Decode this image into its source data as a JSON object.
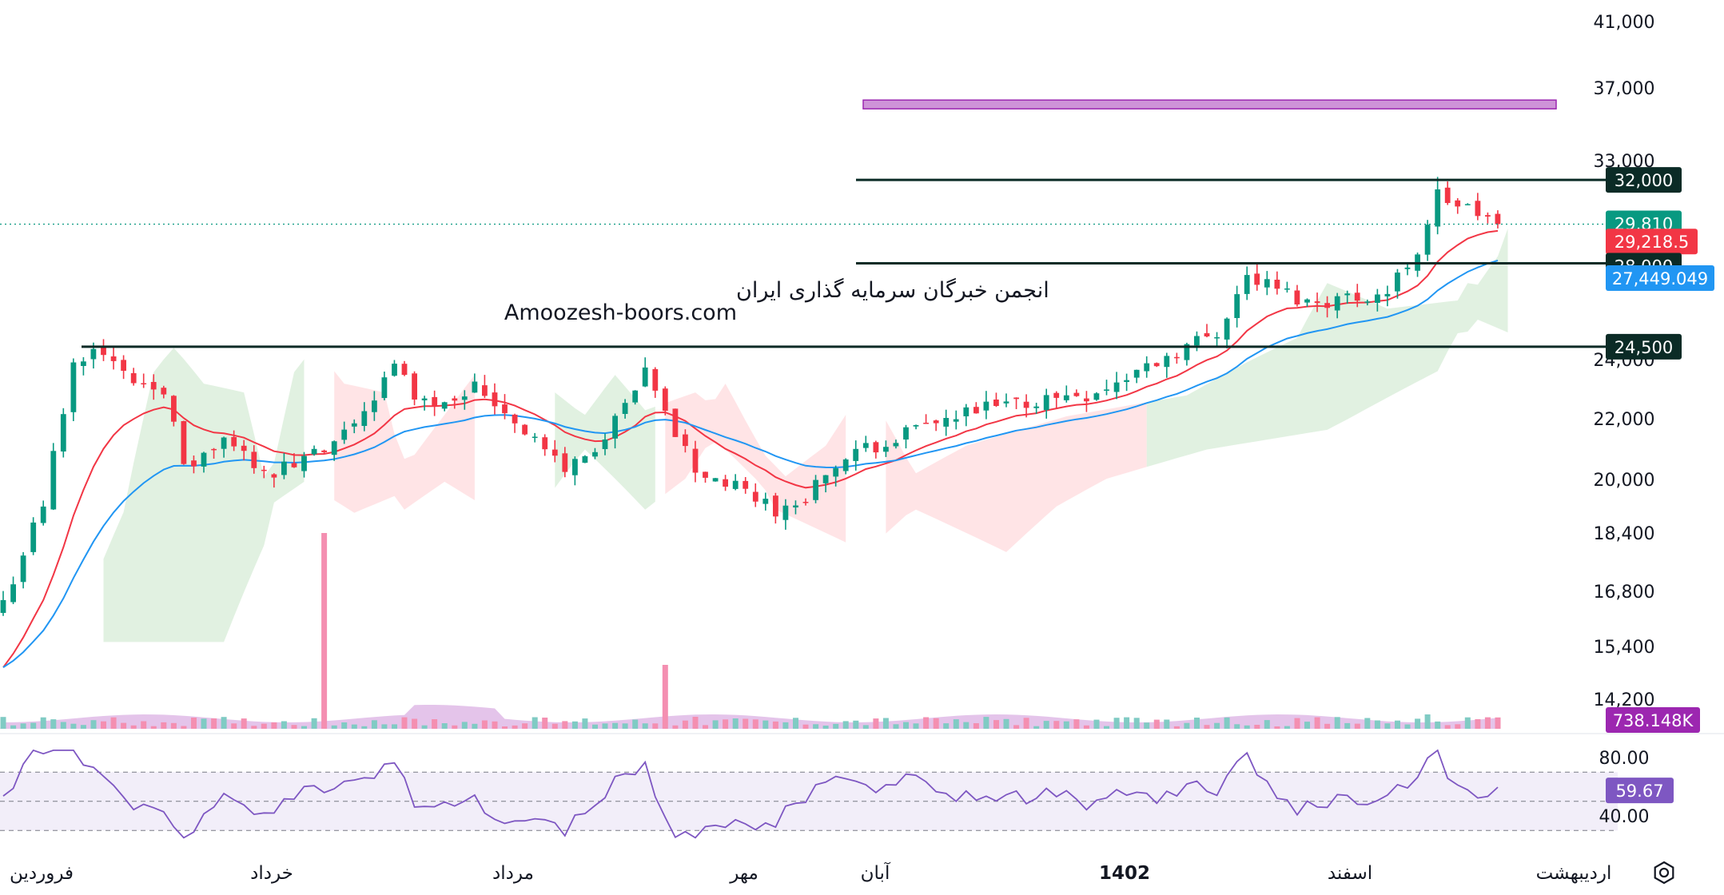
{
  "chart_data": {
    "type": "candlestick",
    "price_axis": {
      "ticks": [
        "41,000",
        "37,000",
        "33,000",
        "24,000",
        "22,000",
        "20,000",
        "18,400",
        "16,800",
        "15,400",
        "14,200"
      ],
      "tick_values": [
        41000,
        37000,
        33000,
        24000,
        22000,
        20000,
        18400,
        16800,
        15400,
        14200
      ],
      "scale": "log",
      "range": [
        13900,
        42500
      ]
    },
    "time_axis": {
      "labels": [
        "فروردین",
        "خرداد",
        "مرداد",
        "مهر",
        "آبان",
        "1402",
        "اسفند",
        "اردیبهشت"
      ],
      "bold_label_index": 5
    },
    "horizontal_levels": [
      {
        "value": 32000,
        "label": "32,000"
      },
      {
        "value": 28000,
        "label": "28,000"
      },
      {
        "value": 24500,
        "label": "24,500"
      }
    ],
    "target_zone": {
      "from": 35800,
      "to": 36300,
      "color": "#ce93d8"
    },
    "last_price": {
      "value": 29810,
      "label": "29,810",
      "color": "#089981"
    },
    "ema_fast": {
      "value": 29218.5,
      "label": "29,218.5",
      "color": "#f23645"
    },
    "ema_slow": {
      "value": 27449.049,
      "label": "27,449.049",
      "color": "#2196f3"
    },
    "volume": {
      "value": "738.148K",
      "color": "#9c27b0"
    },
    "rsi": {
      "value": 59.67,
      "label": "59.67",
      "color": "#7e57c2",
      "ticks": [
        "80.00",
        "40.00"
      ],
      "tick_values": [
        80,
        40
      ],
      "band": [
        30,
        70
      ],
      "range": [
        20,
        90
      ]
    },
    "candle_colors": {
      "up": "#089981",
      "down": "#f23645"
    },
    "cloud_colors": {
      "bull": "#c8e6c9",
      "bear": "#ffcdd2"
    }
  },
  "watermark": {
    "line1": "انجمن خبرگان سرمایه گذاری ایران",
    "line2": "Amoozesh-boors.com"
  },
  "settings_icon": "settings-gear-icon"
}
